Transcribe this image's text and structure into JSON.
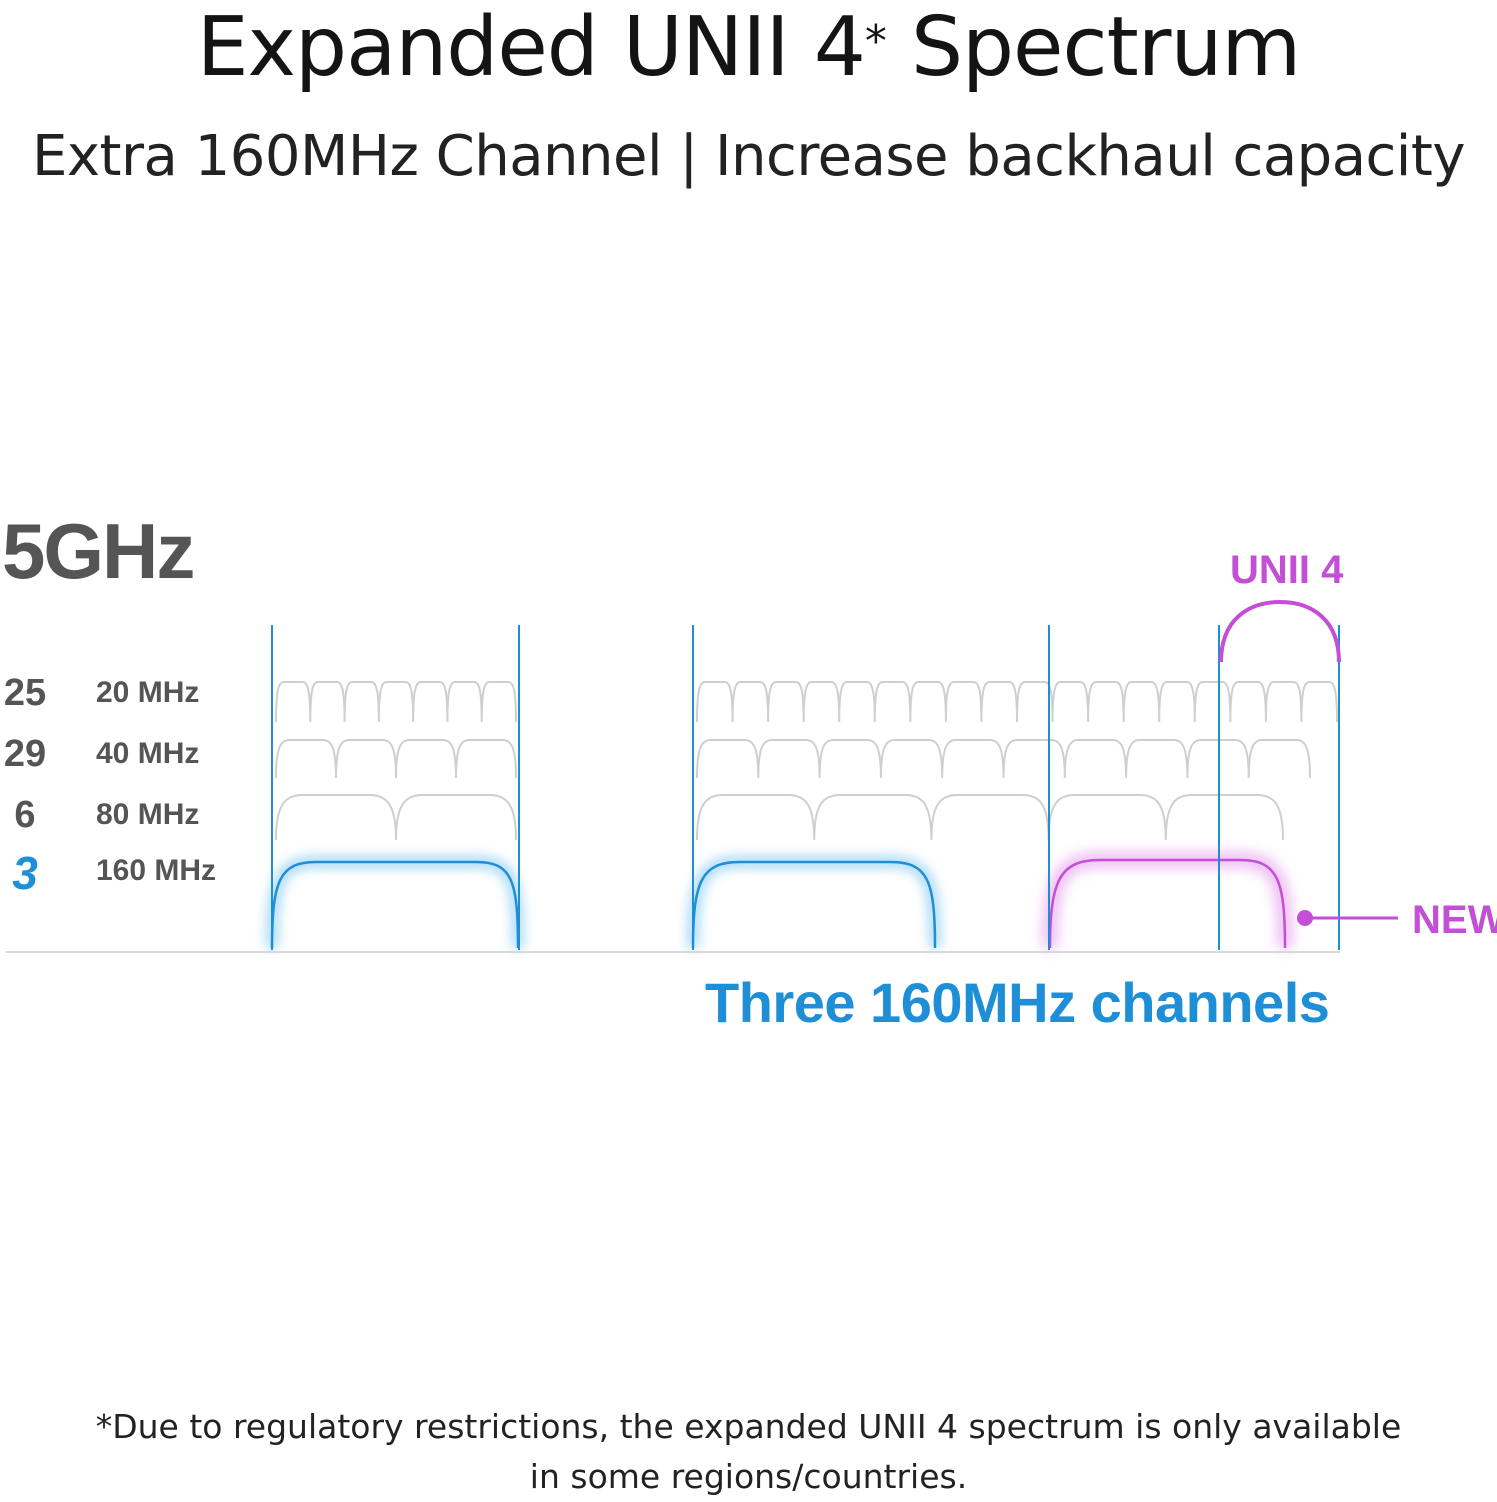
{
  "title": {
    "main": "Expanded UNII 4",
    "superscript": "*",
    "rest": " Spectrum"
  },
  "subtitle": "Extra 160MHz Channel | Increase backhaul capacity",
  "band_label": "5GHz",
  "rows": [
    {
      "count": "25",
      "width": "20 MHz"
    },
    {
      "count": "29",
      "width": "40 MHz"
    },
    {
      "count": "6",
      "width": "80 MHz"
    },
    {
      "count": "3",
      "width": "160 MHz"
    }
  ],
  "unii_label": "UNII 4",
  "new_label": "NEW",
  "caption": "Three 160MHz channels",
  "footnote_line1": "*Due to regulatory restrictions, the expanded UNII 4 spectrum is only available",
  "footnote_line2": "in some regions/countries.",
  "colors": {
    "blue": "#1e8fd6",
    "purple": "#c24fd6",
    "grey_wave": "#cfcfcf",
    "label_grey": "#555555"
  }
}
